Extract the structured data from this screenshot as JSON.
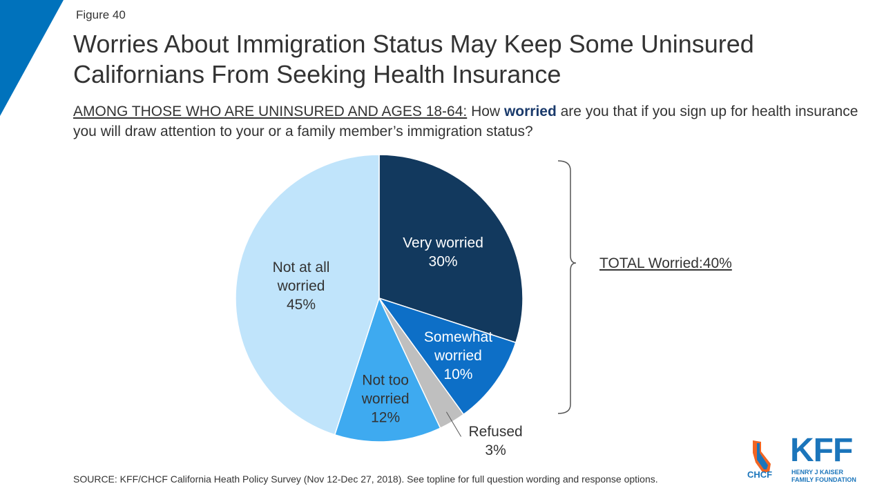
{
  "figure_label": "Figure 40",
  "title": "Worries About Immigration Status May Keep Some Uninsured Californians From Seeking Health Insurance",
  "subtitle": {
    "prefix": "AMONG THOSE WHO ARE UNINSURED AND AGES 18-64:",
    "before": " How ",
    "emphasis": "worried",
    "after": " are you that if you sign up for health insurance you will draw attention to your or a family member’s immigration status?"
  },
  "chart_data": {
    "type": "pie",
    "title": "",
    "slices": [
      {
        "label": "Very worried",
        "value": 30,
        "display": "30%",
        "color": "#12395e"
      },
      {
        "label": "Somewhat worried",
        "value": 10,
        "display": "10%",
        "color": "#0d6fc7"
      },
      {
        "label": "Refused",
        "value": 3,
        "display": "3%",
        "color": "#bfbfbf"
      },
      {
        "label": "Not too worried",
        "value": 12,
        "display": "12%",
        "color": "#3eaaf0"
      },
      {
        "label": "Not at all worried",
        "value": 45,
        "display": "45%",
        "color": "#c0e4fb"
      }
    ],
    "annotation": "TOTAL Worried:40%"
  },
  "source": "SOURCE: KFF/CHCF California Heath Policy Survey (Nov 12-Dec 27, 2018). See topline for full question wording and response options.",
  "logos": {
    "chcf": "CHCF",
    "kff": "KFF",
    "kff_sub_line1": "HENRY J KAISER",
    "kff_sub_line2": "FAMILY FOUNDATION"
  },
  "colors": {
    "accent_blue": "#0072bc",
    "brand_blue": "#1b75bb"
  }
}
